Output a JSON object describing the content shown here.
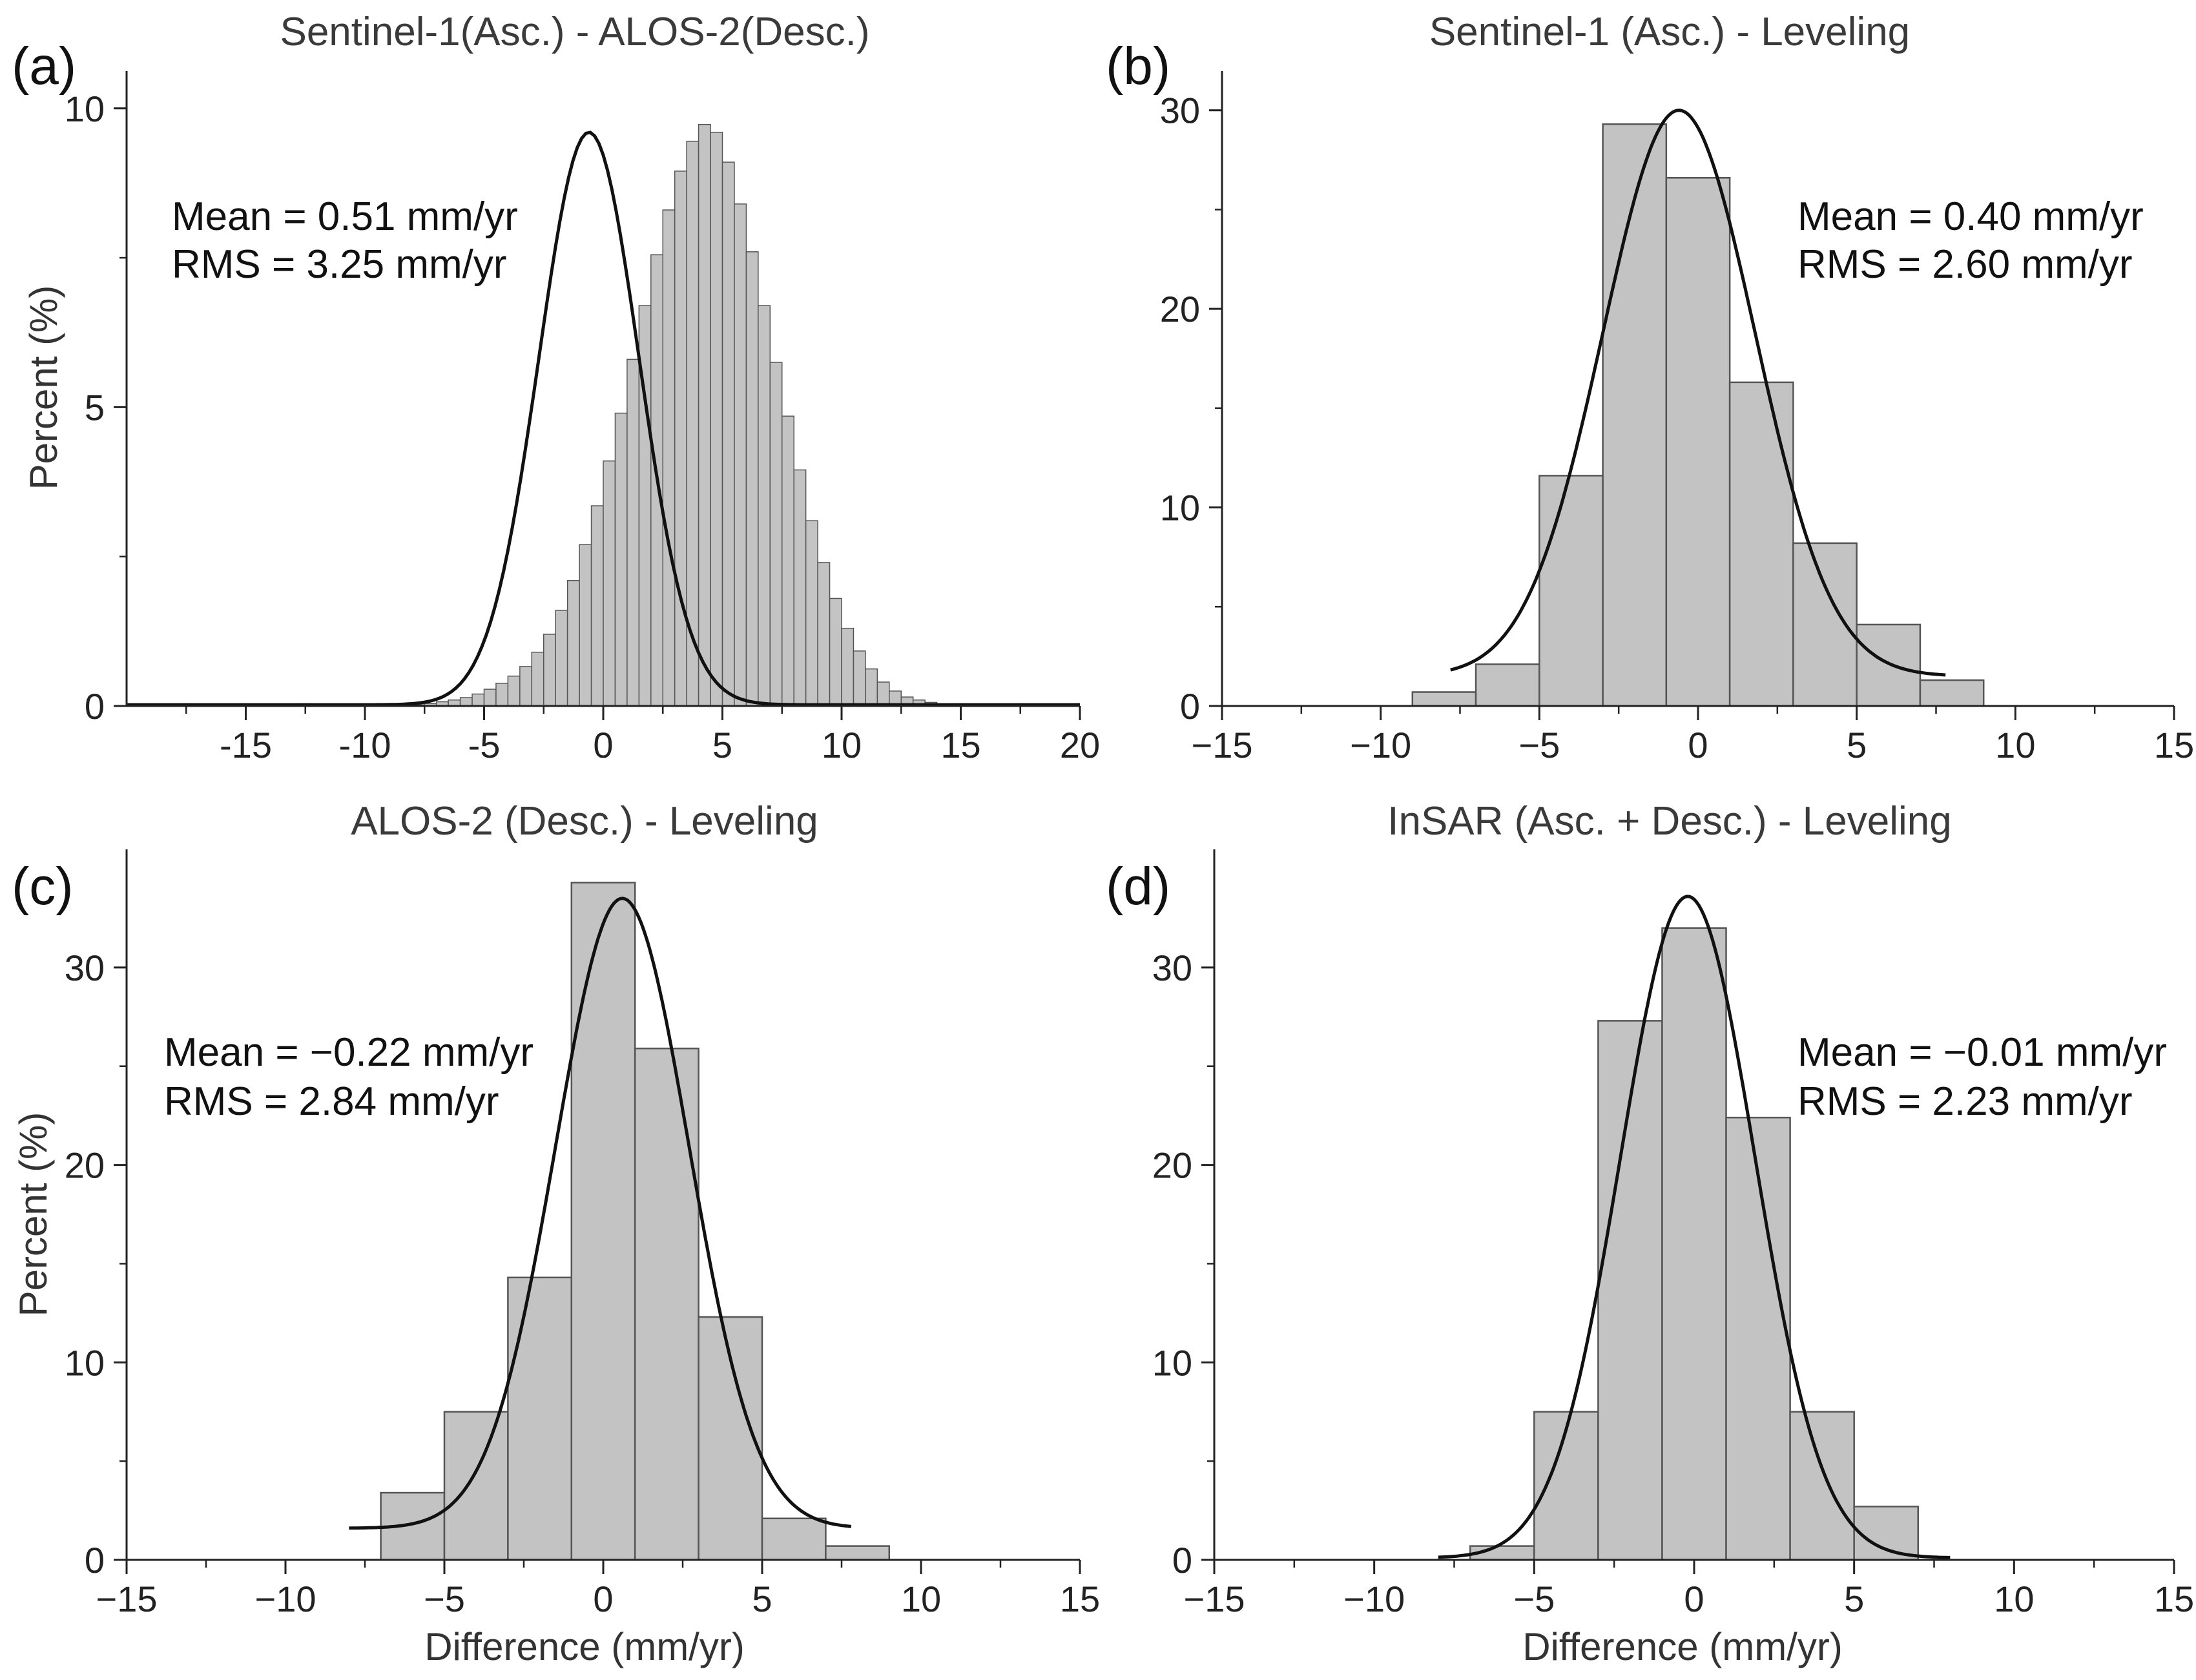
{
  "colors": {
    "bar_fill": "#c3c3c3",
    "bar_stroke": "#555555",
    "curve": "#111111",
    "axis": "#222222"
  },
  "chart_data": [
    {
      "type": "bar",
      "panel_label": "(a)",
      "title": "Sentinel-1(Asc.) - ALOS-2(Desc.)",
      "xlabel": "",
      "ylabel": "Percent (%)",
      "xlim": [
        -20,
        20
      ],
      "ylim": [
        0,
        10.3
      ],
      "xticks": [
        -15,
        -10,
        -5,
        0,
        5,
        10,
        15,
        20
      ],
      "yticks": [
        0,
        5,
        10
      ],
      "xtick_labels": [
        "-15",
        "-10",
        "-5",
        "0",
        "5",
        "10",
        "15",
        "20"
      ],
      "ytick_labels": [
        "0",
        "5",
        "10"
      ],
      "bin_start": -8,
      "bin_width": 0.5,
      "values": [
        0.02,
        0.04,
        0.07,
        0.1,
        0.14,
        0.2,
        0.28,
        0.38,
        0.5,
        0.66,
        0.9,
        1.2,
        1.6,
        2.1,
        2.7,
        3.35,
        4.1,
        4.9,
        5.8,
        6.7,
        7.55,
        8.3,
        8.95,
        9.45,
        9.73,
        9.6,
        9.1,
        8.4,
        7.6,
        6.7,
        5.75,
        4.85,
        3.95,
        3.1,
        2.4,
        1.8,
        1.3,
        0.92,
        0.62,
        0.4,
        0.25,
        0.15,
        0.1,
        0.06
      ],
      "fit": {
        "type": "normal",
        "mu": -0.6,
        "sigma": 2.1,
        "peak": 9.6,
        "range": [
          -20,
          20
        ],
        "baseline": 0.02
      },
      "stats": {
        "mean": "Mean = 0.51 mm/yr",
        "rms": "RMS = 3.25 mm/yr"
      }
    },
    {
      "type": "bar",
      "panel_label": "(b)",
      "title": "Sentinel-1 (Asc.)  - Leveling",
      "xlabel": "",
      "ylabel": "",
      "xlim": [
        -15,
        15
      ],
      "ylim": [
        0,
        31
      ],
      "xticks": [
        -15,
        -10,
        -5,
        0,
        5,
        10,
        15
      ],
      "yticks": [
        0,
        10,
        20,
        30
      ],
      "xtick_labels": [
        "−15",
        "−10",
        "−5",
        "0",
        "5",
        "10",
        "15"
      ],
      "ytick_labels": [
        "0",
        "10",
        "20",
        "30"
      ],
      "bin_start": -9,
      "bin_width": 2,
      "values": [
        0.7,
        2.1,
        11.6,
        29.3,
        26.6,
        16.3,
        8.2,
        4.1,
        1.3
      ],
      "fit": {
        "type": "normal",
        "mu": -0.6,
        "sigma": 2.4,
        "peak": 30.0,
        "range": [
          -7.8,
          7.8
        ],
        "baseline": 1.5
      },
      "stats": {
        "mean": "Mean = 0.40 mm/yr",
        "rms": "RMS = 2.60 mm/yr"
      }
    },
    {
      "type": "bar",
      "panel_label": "(c)",
      "title": "ALOS-2 (Desc.)  - Leveling",
      "xlabel": "Difference (mm/yr)",
      "ylabel": "Percent (%)",
      "xlim": [
        -15,
        15
      ],
      "ylim": [
        0,
        35
      ],
      "xticks": [
        -15,
        -10,
        -5,
        0,
        5,
        10,
        15
      ],
      "yticks": [
        0,
        10,
        20,
        30
      ],
      "xtick_labels": [
        "−15",
        "−10",
        "−5",
        "0",
        "5",
        "10",
        "15"
      ],
      "ytick_labels": [
        "0",
        "10",
        "20",
        "30"
      ],
      "bin_start": -7,
      "bin_width": 2,
      "values": [
        3.4,
        7.5,
        14.3,
        34.3,
        25.9,
        12.3,
        2.1,
        0.7
      ],
      "fit": {
        "type": "normal",
        "mu": 0.6,
        "sigma": 2.1,
        "peak": 33.5,
        "range": [
          -8,
          7.8
        ],
        "baseline": 1.6
      },
      "stats": {
        "mean": "Mean = −0.22 mm/yr",
        "rms": "RMS = 2.84 mm/yr"
      }
    },
    {
      "type": "bar",
      "panel_label": "(d)",
      "title": "InSAR (Asc. + Desc.)  - Leveling",
      "xlabel": "Difference (mm/yr)",
      "ylabel": "",
      "xlim": [
        -15,
        15
      ],
      "ylim": [
        0,
        35
      ],
      "xticks": [
        -15,
        -10,
        -5,
        0,
        5,
        10,
        15
      ],
      "yticks": [
        0,
        10,
        20,
        30
      ],
      "xtick_labels": [
        "−15",
        "−10",
        "−5",
        "0",
        "5",
        "10",
        "15"
      ],
      "ytick_labels": [
        "0",
        "10",
        "20",
        "30"
      ],
      "bin_start": -7,
      "bin_width": 2,
      "values": [
        0.7,
        7.5,
        27.3,
        32.0,
        22.4,
        7.5,
        2.7
      ],
      "fit": {
        "type": "normal",
        "mu": -0.2,
        "sigma": 2.1,
        "peak": 33.6,
        "range": [
          -8,
          8
        ],
        "baseline": 0.1
      },
      "stats": {
        "mean": "Mean = −0.01 mm/yr",
        "rms": "RMS = 2.23 mm/yr"
      }
    }
  ]
}
